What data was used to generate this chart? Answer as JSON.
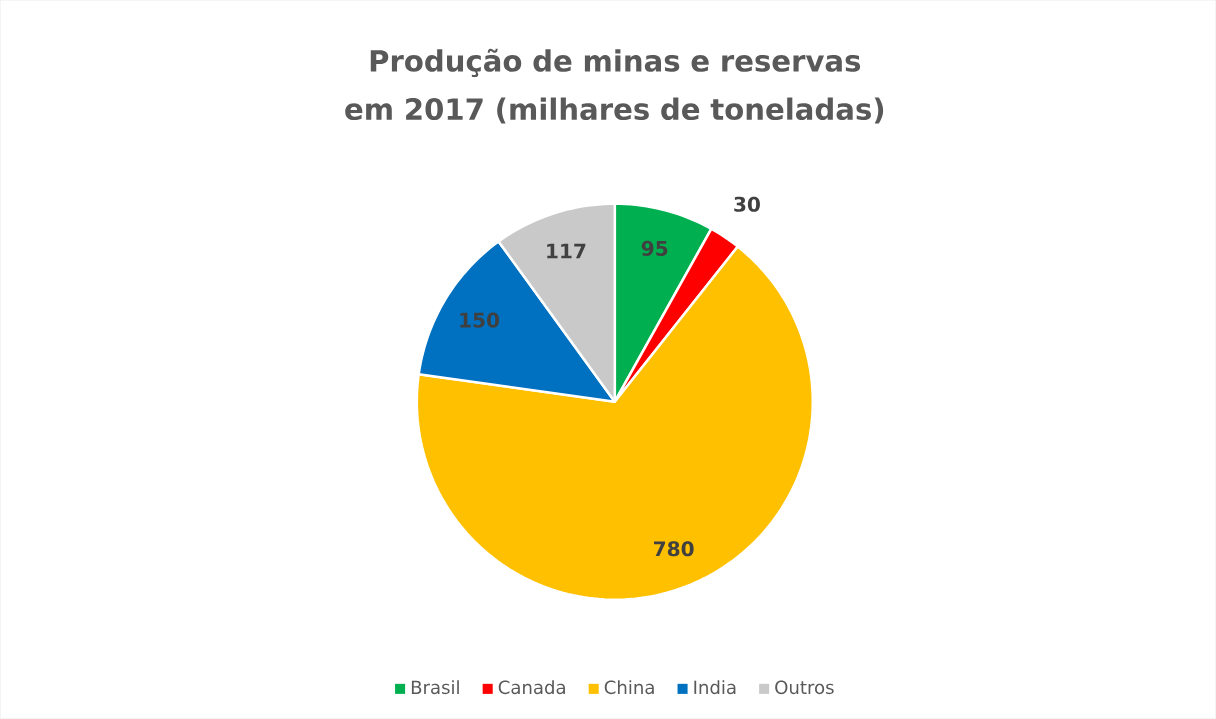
{
  "chart_data": {
    "type": "pie",
    "title": "Produção de minas e reservas em 2017 (milhares de toneladas)",
    "categories": [
      "Brasil",
      "Canada",
      "China",
      "India",
      "Outros"
    ],
    "values": [
      95,
      30,
      780,
      150,
      117
    ],
    "colors": [
      "#00b050",
      "#ff0000",
      "#ffc000",
      "#0070c0",
      "#c9c9c9"
    ],
    "data_labels": true,
    "legend": "bottom"
  }
}
